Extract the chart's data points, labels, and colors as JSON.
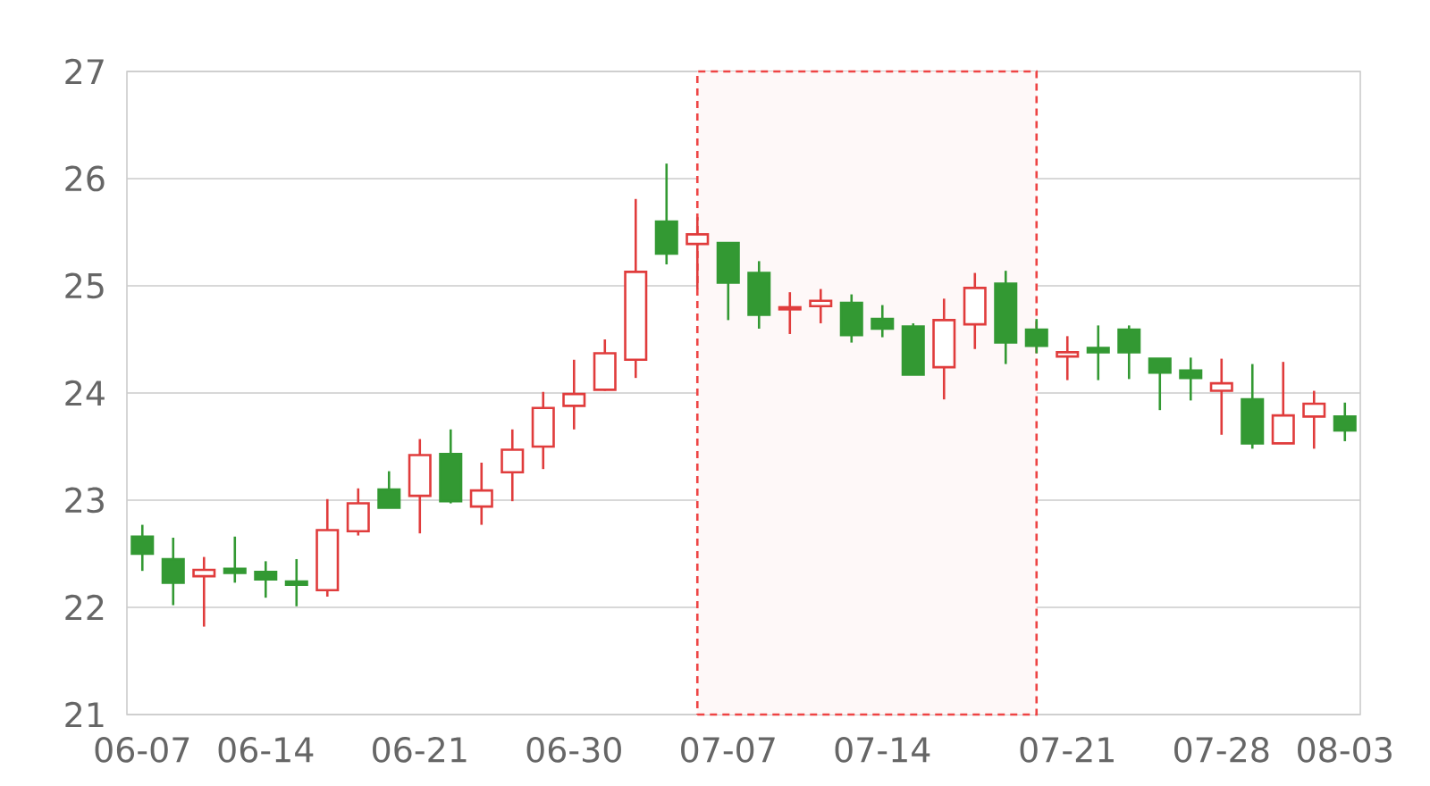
{
  "chart_data": {
    "type": "candlestick",
    "categories": [
      "06-07",
      null,
      null,
      null,
      "06-14",
      null,
      null,
      null,
      null,
      "06-21",
      null,
      null,
      null,
      null,
      "06-30",
      null,
      null,
      null,
      null,
      "07-07",
      null,
      null,
      null,
      null,
      "07-14",
      null,
      null,
      null,
      null,
      null,
      "07-21",
      null,
      null,
      null,
      null,
      "07-28",
      null,
      null,
      null,
      "08-03"
    ],
    "ohlc": [
      [
        22.66,
        22.77,
        22.34,
        22.5
      ],
      [
        22.45,
        22.65,
        22.02,
        22.23
      ],
      [
        22.29,
        22.47,
        21.82,
        22.35
      ],
      [
        22.36,
        22.66,
        22.23,
        22.32
      ],
      [
        22.33,
        22.43,
        22.09,
        22.26
      ],
      [
        22.24,
        22.45,
        22.01,
        22.21
      ],
      [
        22.16,
        23.01,
        22.1,
        22.72
      ],
      [
        22.71,
        23.11,
        22.67,
        22.97
      ],
      [
        23.1,
        23.27,
        22.93,
        22.93
      ],
      [
        23.04,
        23.57,
        22.69,
        23.42
      ],
      [
        23.43,
        23.66,
        22.97,
        22.99
      ],
      [
        22.94,
        23.35,
        22.77,
        23.09
      ],
      [
        23.26,
        23.66,
        22.99,
        23.47
      ],
      [
        23.5,
        24.01,
        23.29,
        23.86
      ],
      [
        23.88,
        24.31,
        23.66,
        23.99
      ],
      [
        24.03,
        24.5,
        24.02,
        24.37
      ],
      [
        24.31,
        25.81,
        24.14,
        25.13
      ],
      [
        25.6,
        26.14,
        25.2,
        25.3
      ],
      [
        25.39,
        25.64,
        24.97,
        25.48
      ],
      [
        25.4,
        25.4,
        24.68,
        25.03
      ],
      [
        25.12,
        25.23,
        24.6,
        24.73
      ],
      [
        24.78,
        24.94,
        24.55,
        24.8
      ],
      [
        24.81,
        24.97,
        24.65,
        24.86
      ],
      [
        24.84,
        24.92,
        24.47,
        24.54
      ],
      [
        24.69,
        24.82,
        24.52,
        24.6
      ],
      [
        24.62,
        24.65,
        24.17,
        24.17
      ],
      [
        24.24,
        24.88,
        23.94,
        24.68
      ],
      [
        24.64,
        25.12,
        24.41,
        24.98
      ],
      [
        25.02,
        25.14,
        24.27,
        24.47
      ],
      [
        24.59,
        24.69,
        24.37,
        24.44
      ],
      [
        24.34,
        24.53,
        24.12,
        24.38
      ],
      [
        24.42,
        24.63,
        24.12,
        24.38
      ],
      [
        24.59,
        24.63,
        24.13,
        24.38
      ],
      [
        24.32,
        24.32,
        23.84,
        24.19
      ],
      [
        24.21,
        24.33,
        23.93,
        24.14
      ],
      [
        24.02,
        24.32,
        23.61,
        24.09
      ],
      [
        23.94,
        24.27,
        23.48,
        23.53
      ],
      [
        23.53,
        24.29,
        23.53,
        23.79
      ],
      [
        23.78,
        24.02,
        23.48,
        23.9
      ],
      [
        23.78,
        23.91,
        23.55,
        23.65
      ]
    ],
    "colors": [
      "#339933",
      "#339933",
      "#e03c3c",
      "#339933",
      "#339933",
      "#339933",
      "#e03c3c",
      "#e03c3c",
      "#339933",
      "#e03c3c",
      "#339933",
      "#e03c3c",
      "#e03c3c",
      "#e03c3c",
      "#e03c3c",
      "#e03c3c",
      "#e03c3c",
      "#339933",
      "#e03c3c",
      "#339933",
      "#339933",
      "#e03c3c",
      "#e03c3c",
      "#339933",
      "#339933",
      "#339933",
      "#e03c3c",
      "#e03c3c",
      "#339933",
      "#339933",
      "#e03c3c",
      "#339933",
      "#339933",
      "#339933",
      "#339933",
      "#e03c3c",
      "#339933",
      "#e03c3c",
      "#e03c3c",
      "#339933"
    ],
    "ylim": [
      21,
      27
    ],
    "yticks": [
      21,
      22,
      23,
      24,
      25,
      26,
      27
    ],
    "grid": "y"
  }
}
